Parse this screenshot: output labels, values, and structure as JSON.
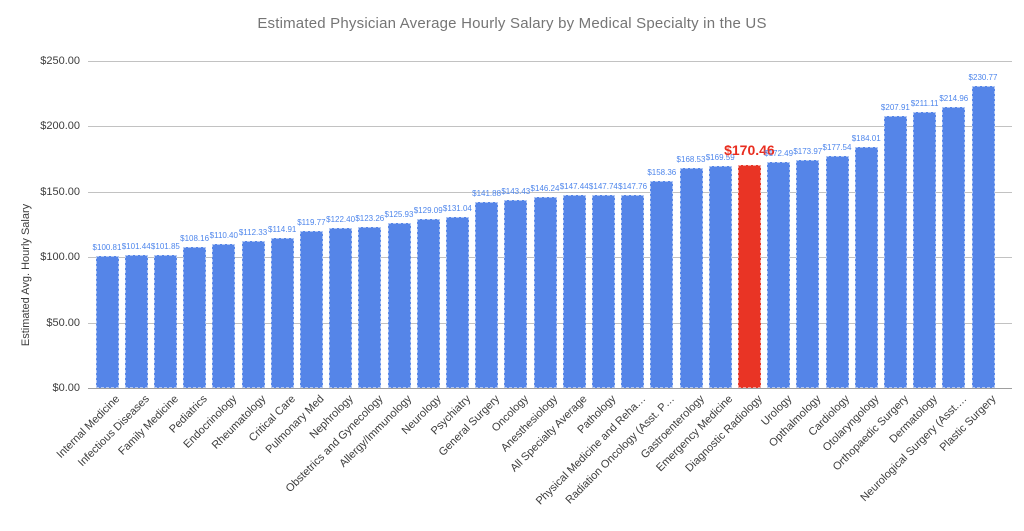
{
  "chart_data": {
    "type": "bar",
    "title": "Estimated Physician Average Hourly Salary by Medical Specialty in the US",
    "xlabel": "",
    "ylabel": "Estimated Avg. Hourly Salary",
    "ylim": [
      0,
      250
    ],
    "ytick_step": 50,
    "ytick_prefix": "$",
    "grid": true,
    "legend": "none",
    "categories": [
      "Internal Medicine",
      "Infectious Diseases",
      "Family Medicine",
      "Pediatrics",
      "Endocrinology",
      "Rheumatology",
      "Critical Care",
      "Pulmonary Med",
      "Nephrology",
      "Obstetrics and Gynecology",
      "Allergy/Immunology",
      "Neurology",
      "Psychiatry",
      "General Surgery",
      "Oncology",
      "Anesthesiology",
      "All Specialty Average",
      "Pathology",
      "Physical Medicine and Reha…",
      "Radiation Oncology (Asst. P…",
      "Gastroenterology",
      "Emergency Medicine",
      "Diagnostic Radiology",
      "Urology",
      "Opthalmology",
      "Cardiology",
      "Otolaryngology",
      "Orthopaedic Surgery",
      "Dermatology",
      "Neurological Surgery (Asst.…",
      "Plastic Surgery"
    ],
    "values": [
      100.81,
      101.44,
      101.85,
      108.16,
      110.4,
      112.33,
      114.91,
      119.77,
      122.4,
      123.26,
      125.93,
      129.09,
      131.04,
      141.88,
      143.43,
      146.24,
      147.44,
      147.74,
      147.76,
      158.36,
      168.53,
      169.59,
      170.46,
      172.49,
      173.97,
      177.54,
      184.01,
      207.91,
      211.11,
      214.96,
      230.77
    ],
    "highlight": {
      "index": 22,
      "category": "Diagnostic Radiology",
      "value": 170.46,
      "label": "$170.46"
    },
    "colors": {
      "bar": "#5585e8",
      "highlight_bar": "#e93425",
      "value_label": "#4e86ec",
      "highlight_label": "#e92d1f",
      "title": "#757575",
      "axis_text": "#3c3c3c",
      "gridline": "#c2c2c2",
      "baseline": "#9e9e9e",
      "background": "#ffffff"
    }
  }
}
